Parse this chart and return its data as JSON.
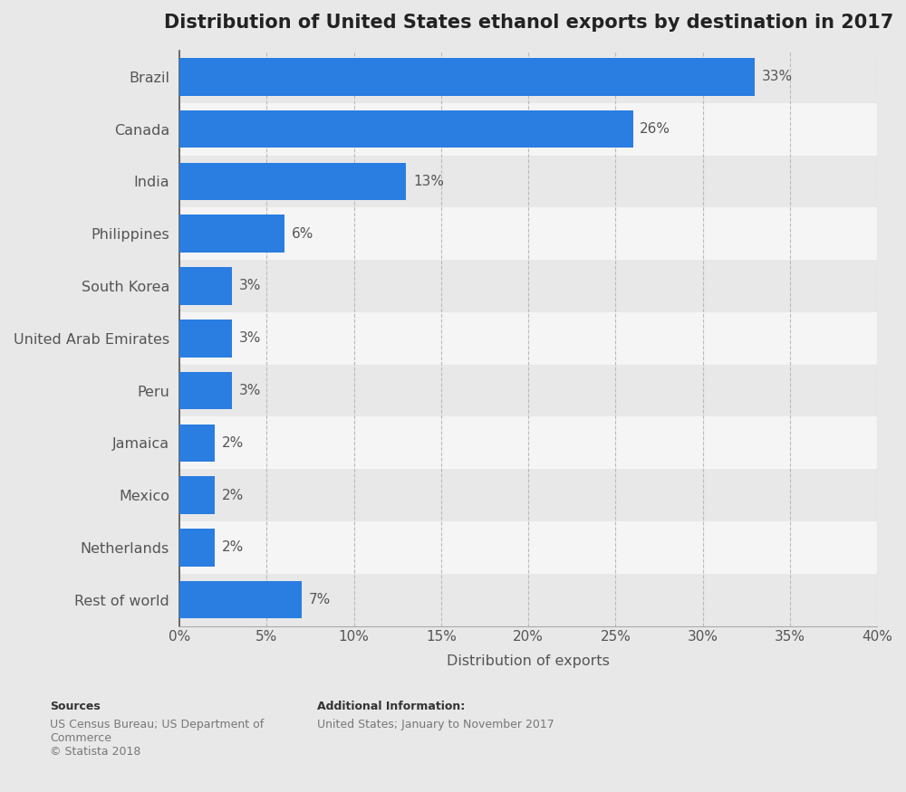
{
  "title": "Distribution of United States ethanol exports by destination in 2017",
  "categories": [
    "Brazil",
    "Canada",
    "India",
    "Philippines",
    "South Korea",
    "United Arab Emirates",
    "Peru",
    "Jamaica",
    "Mexico",
    "Netherlands",
    "Rest of world"
  ],
  "values": [
    33,
    26,
    13,
    6,
    3,
    3,
    3,
    2,
    2,
    2,
    7
  ],
  "bar_color": "#2a7de1",
  "background_color": "#e8e8e8",
  "row_colors": [
    "#e8e8e8",
    "#f5f5f5"
  ],
  "xlabel": "Distribution of exports",
  "xlim": [
    0,
    40
  ],
  "xticks": [
    0,
    5,
    10,
    15,
    20,
    25,
    30,
    35,
    40
  ],
  "xtick_labels": [
    "0%",
    "5%",
    "10%",
    "15%",
    "20%",
    "25%",
    "30%",
    "35%",
    "40%"
  ],
  "title_fontsize": 15,
  "label_fontsize": 11.5,
  "tick_fontsize": 11,
  "value_fontsize": 11,
  "bar_height": 0.72,
  "sources_line1": "Sources",
  "sources_line2": "US Census Bureau; US Department of\nCommerce\n© Statista 2018",
  "addinfo_line1": "Additional Information:",
  "addinfo_line2": "United States; January to November 2017"
}
